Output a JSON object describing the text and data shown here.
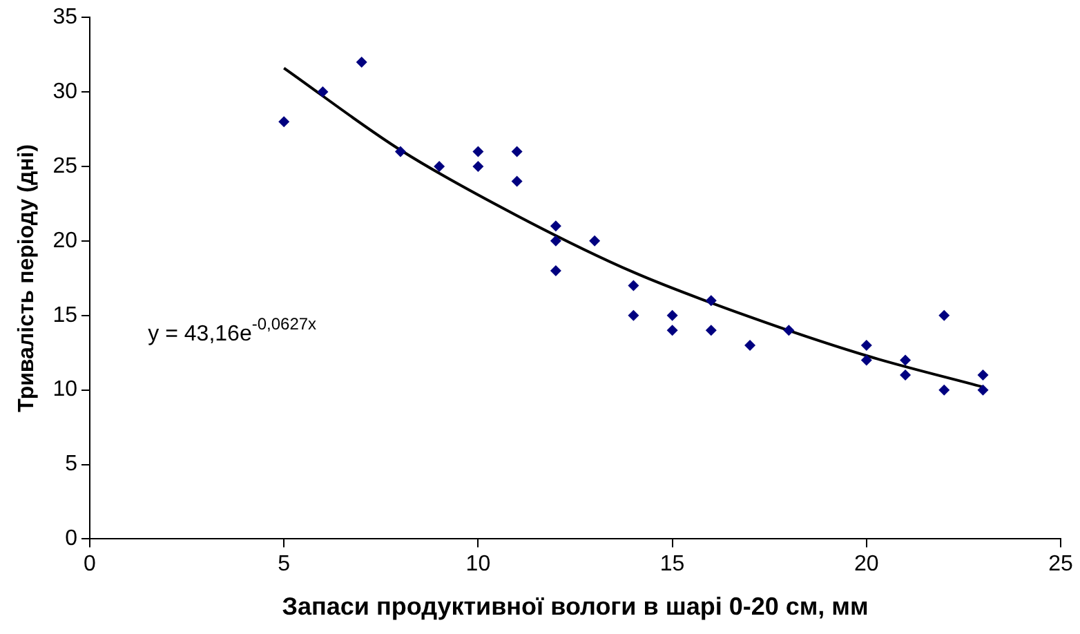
{
  "chart_data": {
    "type": "scatter",
    "xlabel": "Запаси продуктивної вологи в шарі 0-20 см, мм",
    "ylabel": "Тривалість періоду (дні)",
    "xlim": [
      0,
      25
    ],
    "xticks": [
      0,
      5,
      10,
      15,
      20,
      25
    ],
    "ylim": [
      0,
      35
    ],
    "yticks": [
      0,
      5,
      10,
      15,
      20,
      25,
      30,
      35
    ],
    "grid": false,
    "legend": false,
    "marker": "diamond",
    "annotations": [
      "y = 43,16e$^{-0,0627x}$"
    ],
    "series": [
      {
        "type": "scatter",
        "color": "#000080",
        "x": [
          5,
          6,
          7,
          8,
          9,
          10,
          10,
          11,
          11,
          12,
          12,
          12,
          13,
          14,
          14,
          15,
          15,
          16,
          16,
          17,
          18,
          20,
          20,
          21,
          21,
          22,
          22,
          23,
          23
        ],
        "values": [
          28,
          30,
          32,
          26,
          25,
          26,
          25,
          26,
          24,
          21,
          20,
          18,
          20,
          17,
          15,
          15,
          14,
          16,
          14,
          13,
          14,
          13,
          12,
          12,
          11,
          15,
          10,
          11,
          10
        ]
      },
      {
        "type": "line",
        "color": "#000000",
        "marker": "none",
        "x": [
          5,
          8,
          11,
          14,
          17,
          20,
          23
        ],
        "values": [
          31.6,
          26.1,
          21.7,
          17.9,
          14.9,
          12.3,
          10.2
        ]
      }
    ]
  }
}
